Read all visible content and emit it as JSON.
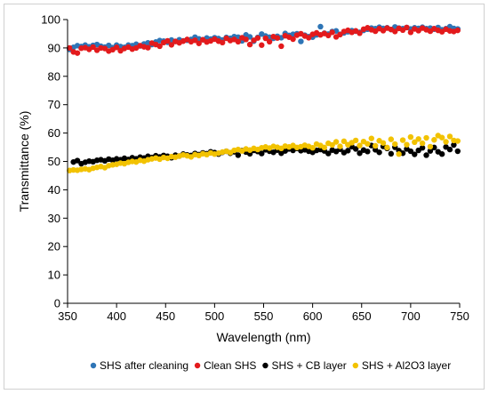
{
  "chart_data": {
    "type": "scatter",
    "title": "",
    "xlabel": "Wavelength (nm)",
    "ylabel": "Transmittance (%)",
    "xlim": [
      350,
      750
    ],
    "ylim": [
      0,
      100
    ],
    "xticks": [
      350,
      400,
      450,
      500,
      550,
      600,
      650,
      700,
      750
    ],
    "yticks": [
      0,
      10,
      20,
      30,
      40,
      50,
      60,
      70,
      80,
      90,
      100
    ],
    "grid": false,
    "legend_position": "bottom",
    "series": [
      {
        "name": "SHS after cleaning",
        "color": "#2e75b6",
        "x": [
          352,
          356,
          360,
          364,
          368,
          372,
          376,
          380,
          384,
          388,
          392,
          396,
          400,
          404,
          408,
          412,
          416,
          420,
          424,
          428,
          432,
          436,
          440,
          444,
          448,
          452,
          456,
          460,
          464,
          468,
          472,
          476,
          480,
          484,
          488,
          492,
          496,
          500,
          504,
          508,
          512,
          516,
          520,
          524,
          528,
          532,
          536,
          540,
          544,
          548,
          552,
          556,
          560,
          564,
          568,
          572,
          576,
          580,
          584,
          588,
          592,
          596,
          600,
          604,
          608,
          612,
          616,
          620,
          624,
          628,
          632,
          636,
          640,
          644,
          648,
          652,
          656,
          660,
          664,
          668,
          672,
          676,
          680,
          684,
          688,
          692,
          696,
          700,
          704,
          708,
          712,
          716,
          720,
          724,
          728,
          732,
          736,
          740,
          744,
          748
        ],
        "y": [
          89.5,
          90.2,
          90.8,
          90.5,
          91.0,
          90.4,
          90.9,
          91.2,
          90.6,
          90.3,
          90.9,
          90.1,
          91.0,
          90.5,
          90.2,
          91.0,
          90.8,
          91.3,
          90.7,
          91.4,
          91.8,
          91.2,
          92.1,
          92.6,
          92.4,
          92.0,
          92.8,
          92.3,
          92.9,
          92.5,
          92.7,
          93.0,
          93.8,
          93.2,
          92.9,
          93.5,
          93.1,
          93.6,
          93.3,
          92.8,
          93.7,
          93.4,
          94.0,
          93.8,
          92.5,
          94.6,
          93.9,
          92.4,
          93.7,
          94.9,
          94.2,
          93.8,
          93.4,
          94.1,
          93.6,
          95.1,
          94.4,
          94.8,
          95.0,
          92.3,
          94.5,
          94.0,
          93.8,
          94.6,
          97.5,
          95.2,
          94.9,
          95.8,
          96.0,
          94.8,
          95.3,
          95.7,
          96.1,
          95.9,
          95.5,
          96.2,
          96.6,
          97.0,
          96.8,
          97.3,
          96.9,
          97.1,
          96.5,
          97.4,
          97.0,
          96.8,
          97.2,
          96.7,
          97.1,
          96.9,
          97.3,
          96.8,
          97.0,
          96.6,
          97.2,
          96.4,
          96.8,
          97.5,
          96.9,
          96.7
        ]
      },
      {
        "name": "Clean SHS",
        "color": "#e31a1c",
        "x": [
          352,
          356,
          360,
          364,
          368,
          372,
          376,
          380,
          384,
          388,
          392,
          396,
          400,
          404,
          408,
          412,
          416,
          420,
          424,
          428,
          432,
          436,
          440,
          444,
          448,
          452,
          456,
          460,
          464,
          468,
          472,
          476,
          480,
          484,
          488,
          492,
          496,
          500,
          504,
          508,
          512,
          516,
          520,
          524,
          528,
          532,
          536,
          540,
          544,
          548,
          552,
          556,
          560,
          564,
          568,
          572,
          576,
          580,
          584,
          588,
          592,
          596,
          600,
          604,
          608,
          612,
          616,
          620,
          624,
          628,
          632,
          636,
          640,
          644,
          648,
          652,
          656,
          660,
          664,
          668,
          672,
          676,
          680,
          684,
          688,
          692,
          696,
          700,
          704,
          708,
          712,
          716,
          720,
          724,
          728,
          732,
          736,
          740,
          744,
          748
        ],
        "y": [
          90.0,
          88.6,
          88.2,
          89.9,
          90.1,
          89.5,
          90.3,
          89.2,
          90.0,
          89.8,
          88.9,
          89.4,
          90.2,
          89.0,
          89.8,
          90.3,
          89.6,
          90.0,
          90.8,
          90.4,
          90.1,
          91.7,
          91.2,
          90.6,
          91.9,
          92.5,
          91.1,
          92.3,
          91.8,
          92.4,
          93.0,
          92.2,
          92.7,
          91.6,
          92.9,
          92.1,
          92.5,
          93.1,
          92.4,
          91.9,
          93.4,
          92.6,
          93.0,
          92.2,
          93.6,
          93.0,
          91.2,
          92.7,
          93.5,
          91.0,
          93.4,
          92.2,
          94.0,
          93.5,
          90.6,
          94.3,
          93.8,
          93.1,
          94.5,
          95.0,
          94.2,
          93.6,
          94.8,
          95.3,
          94.6,
          95.1,
          94.4,
          95.5,
          93.9,
          94.7,
          95.8,
          96.2,
          95.5,
          96.0,
          95.2,
          96.6,
          97.1,
          96.4,
          95.9,
          96.8,
          96.1,
          97.0,
          96.5,
          95.8,
          96.9,
          96.3,
          97.2,
          95.5,
          96.7,
          96.1,
          97.0,
          96.4,
          95.9,
          96.8,
          96.2,
          95.7,
          96.6,
          96.0,
          95.8,
          96.2
        ]
      },
      {
        "name": "SHS + CB layer",
        "color": "#000000",
        "x": [
          356,
          360,
          364,
          368,
          372,
          376,
          380,
          384,
          388,
          392,
          396,
          400,
          404,
          408,
          412,
          416,
          420,
          424,
          428,
          432,
          436,
          440,
          444,
          448,
          452,
          456,
          460,
          464,
          468,
          472,
          476,
          480,
          484,
          488,
          492,
          496,
          500,
          504,
          508,
          512,
          516,
          520,
          524,
          528,
          532,
          536,
          540,
          544,
          548,
          552,
          556,
          560,
          564,
          568,
          572,
          576,
          580,
          584,
          588,
          592,
          596,
          600,
          604,
          608,
          612,
          616,
          620,
          624,
          628,
          632,
          636,
          640,
          644,
          648,
          652,
          656,
          660,
          664,
          668,
          672,
          676,
          680,
          684,
          688,
          692,
          696,
          700,
          704,
          708,
          712,
          716,
          720,
          724,
          728,
          732,
          736,
          740,
          744,
          748
        ],
        "y": [
          49.8,
          50.3,
          49.2,
          49.7,
          50.1,
          49.9,
          50.4,
          50.6,
          50.2,
          50.8,
          50.4,
          50.9,
          50.6,
          51.1,
          50.7,
          51.3,
          50.9,
          51.5,
          51.2,
          51.8,
          51.4,
          52.0,
          51.6,
          52.1,
          51.8,
          51.3,
          52.2,
          51.9,
          52.6,
          52.3,
          52.1,
          52.8,
          52.4,
          53.0,
          52.7,
          53.4,
          53.1,
          52.6,
          53.2,
          53.6,
          52.9,
          53.4,
          52.2,
          53.8,
          53.3,
          52.7,
          53.9,
          53.5,
          52.8,
          54.1,
          53.6,
          53.2,
          54.0,
          52.9,
          53.7,
          54.4,
          53.9,
          54.6,
          53.8,
          54.1,
          53.6,
          53.2,
          53.9,
          54.2,
          53.7,
          52.8,
          54.0,
          53.5,
          54.3,
          53.1,
          53.8,
          55.2,
          54.4,
          52.9,
          54.0,
          53.5,
          55.6,
          54.1,
          53.2,
          55.3,
          54.6,
          52.7,
          55.0,
          53.8,
          52.9,
          54.4,
          53.6,
          52.5,
          53.9,
          54.8,
          52.2,
          53.7,
          54.9,
          53.4,
          52.6,
          55.1,
          54.2,
          55.8,
          53.6
        ]
      },
      {
        "name": "SHS + Al2O3 layer",
        "color": "#f2c200",
        "x": [
          352,
          356,
          360,
          364,
          368,
          372,
          376,
          380,
          384,
          388,
          392,
          396,
          400,
          404,
          408,
          412,
          416,
          420,
          424,
          428,
          432,
          436,
          440,
          444,
          448,
          452,
          456,
          460,
          464,
          468,
          472,
          476,
          480,
          484,
          488,
          492,
          496,
          500,
          504,
          508,
          512,
          516,
          520,
          524,
          528,
          532,
          536,
          540,
          544,
          548,
          552,
          556,
          560,
          564,
          568,
          572,
          576,
          580,
          584,
          588,
          592,
          596,
          600,
          604,
          608,
          612,
          616,
          620,
          624,
          628,
          632,
          636,
          640,
          644,
          648,
          652,
          656,
          660,
          664,
          668,
          672,
          676,
          680,
          684,
          688,
          692,
          696,
          700,
          704,
          708,
          712,
          716,
          720,
          724,
          728,
          732,
          736,
          740,
          744,
          748
        ],
        "y": [
          46.8,
          47.0,
          46.9,
          47.2,
          47.4,
          47.1,
          47.6,
          47.9,
          48.2,
          47.8,
          48.5,
          48.8,
          49.0,
          49.4,
          49.2,
          49.7,
          50.0,
          49.8,
          50.4,
          50.1,
          50.6,
          50.9,
          51.2,
          50.8,
          51.4,
          51.1,
          51.7,
          51.5,
          51.9,
          52.3,
          52.0,
          51.6,
          52.4,
          52.1,
          52.7,
          52.4,
          53.0,
          52.6,
          52.9,
          53.3,
          53.6,
          53.1,
          53.9,
          54.2,
          53.7,
          54.4,
          54.0,
          54.6,
          54.2,
          54.8,
          55.1,
          54.7,
          55.3,
          55.0,
          54.6,
          55.4,
          55.1,
          55.6,
          54.9,
          55.2,
          55.7,
          55.3,
          54.8,
          56.1,
          55.6,
          54.9,
          56.4,
          55.8,
          56.9,
          55.3,
          57.1,
          55.9,
          56.6,
          57.4,
          55.6,
          57.0,
          56.2,
          58.1,
          55.5,
          57.3,
          56.5,
          54.9,
          57.8,
          56.1,
          52.6,
          57.5,
          55.9,
          58.6,
          56.8,
          57.9,
          56.4,
          58.3,
          55.2,
          57.6,
          59.1,
          58.4,
          56.9,
          58.8,
          57.4,
          57.2
        ]
      }
    ]
  }
}
